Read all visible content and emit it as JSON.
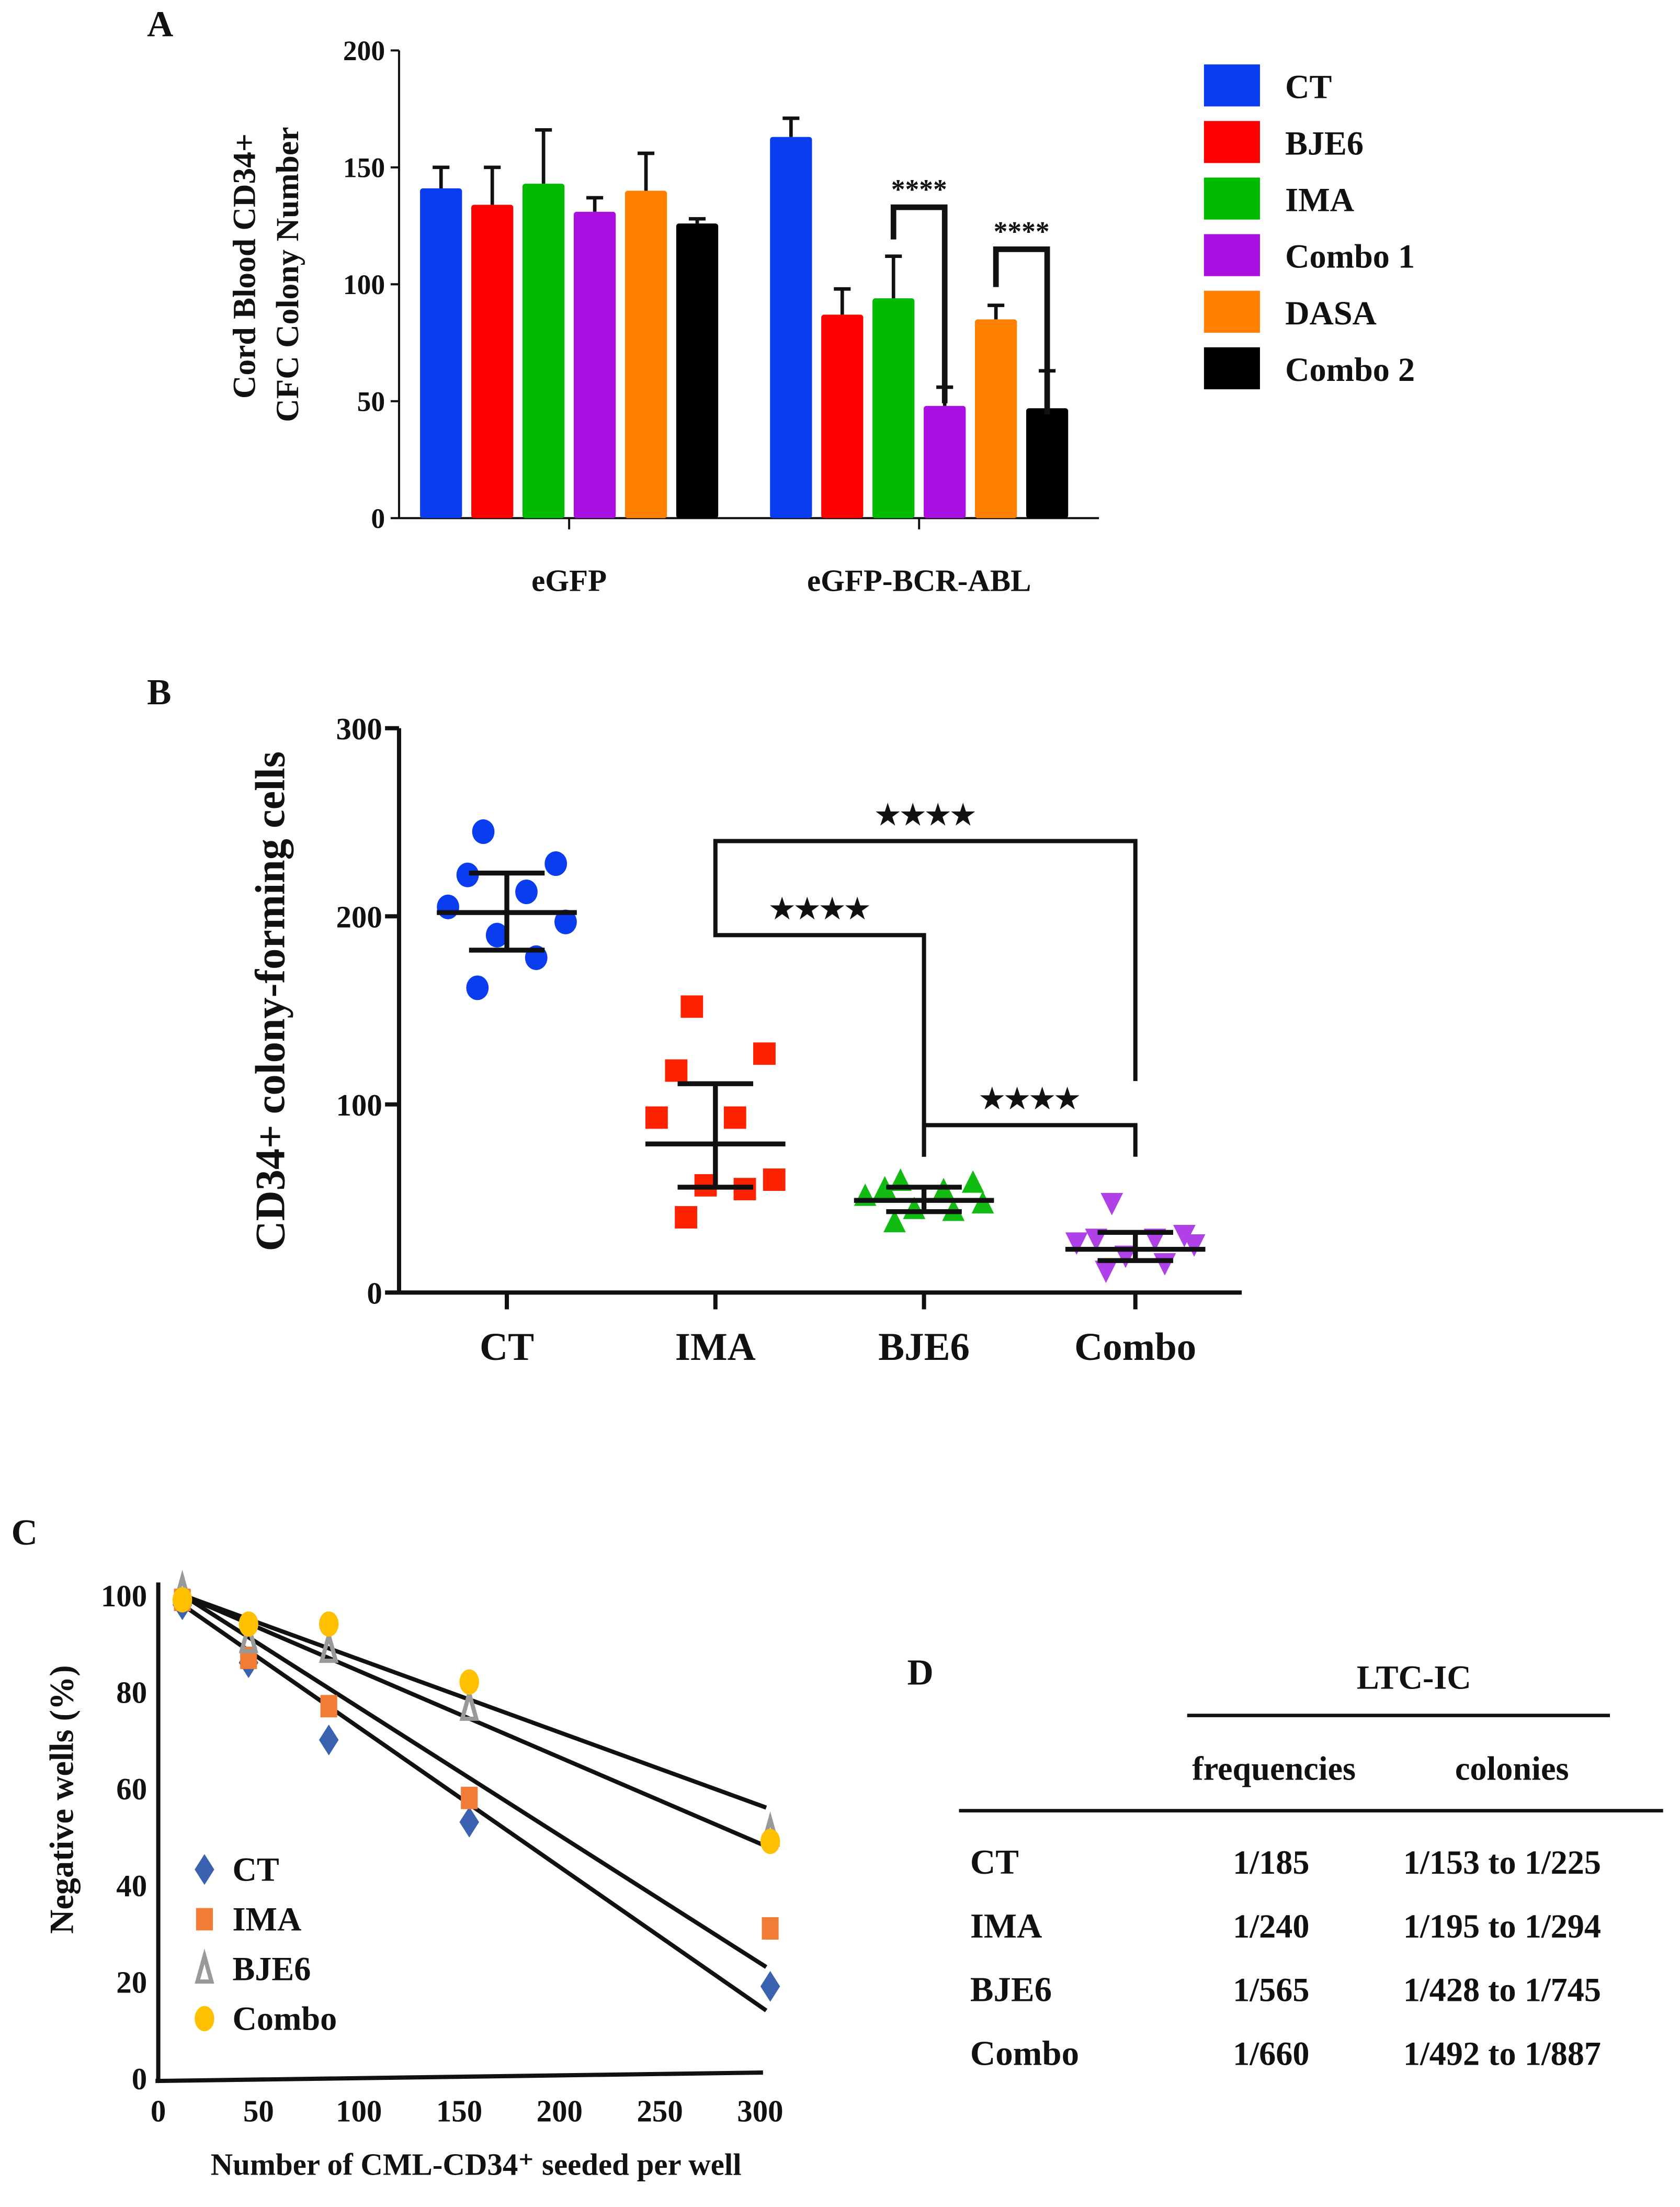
{
  "chart_data": [
    {
      "panel": "A",
      "type": "bar",
      "ylabel": [
        "Cord Blood CD34+",
        "CFC Colony Number"
      ],
      "ylim": [
        0,
        200
      ],
      "yticks": [
        0,
        50,
        100,
        150,
        200
      ],
      "categories": [
        "eGFP",
        "eGFP-BCR-ABL"
      ],
      "series": [
        {
          "name": "CT",
          "color": "#0a3cf0",
          "values": [
            141,
            163
          ],
          "errors": [
            9,
            8
          ]
        },
        {
          "name": "BJE6",
          "color": "#ff0000",
          "values": [
            134,
            87
          ],
          "errors": [
            16,
            11
          ]
        },
        {
          "name": "IMA",
          "color": "#00bb00",
          "values": [
            143,
            94
          ],
          "errors": [
            23,
            18
          ]
        },
        {
          "name": "Combo 1",
          "color": "#a80fe0",
          "values": [
            131,
            48
          ],
          "errors": [
            6,
            8
          ]
        },
        {
          "name": "DASA",
          "color": "#ff8000",
          "values": [
            140,
            85
          ],
          "errors": [
            16,
            6
          ]
        },
        {
          "name": "Combo 2",
          "color": "#000000",
          "values": [
            126,
            47
          ],
          "errors": [
            2,
            16
          ]
        }
      ],
      "significance": [
        {
          "category": "eGFP-BCR-ABL",
          "from": "IMA",
          "to": "Combo 1",
          "label": "****"
        },
        {
          "category": "eGFP-BCR-ABL",
          "from": "DASA",
          "to": "Combo 2",
          "label": "****"
        }
      ],
      "legend": "right"
    },
    {
      "panel": "B",
      "type": "scatter",
      "ylabel": "CD34+ colony-forming cells",
      "ylim": [
        0,
        300
      ],
      "yticks": [
        0,
        100,
        200,
        300
      ],
      "categories": [
        "CT",
        "IMA",
        "BJE6",
        "Combo"
      ],
      "groups": [
        {
          "name": "CT",
          "color": "#0a3cf0",
          "marker": "circle",
          "values": [
            245,
            228,
            222,
            213,
            205,
            197,
            190,
            178,
            162
          ],
          "mean": 202,
          "sd": [
            182,
            223
          ]
        },
        {
          "name": "IMA",
          "color": "#ff2200",
          "marker": "square",
          "values": [
            152,
            127,
            118,
            93,
            93,
            60,
            57,
            55,
            40
          ],
          "mean": 79,
          "sd": [
            56,
            111
          ]
        },
        {
          "name": "BJE6",
          "color": "#11bb11",
          "marker": "triangle-up",
          "values": [
            60,
            59,
            56,
            55,
            52,
            48,
            45,
            44,
            38
          ],
          "mean": 49,
          "sd": [
            43,
            56
          ]
        },
        {
          "name": "Combo",
          "color": "#b040e8",
          "marker": "triangle-down",
          "values": [
            47,
            30,
            28,
            28,
            26,
            25,
            19,
            15,
            11
          ],
          "mean": 23,
          "sd": [
            17,
            32
          ]
        }
      ],
      "significance": [
        {
          "from": "IMA",
          "to": "Combo",
          "level": 240,
          "label": "★★★★"
        },
        {
          "from": "IMA",
          "to": "BJE6",
          "level": 190,
          "label": "★★★★"
        },
        {
          "from": "BJE6",
          "to": "Combo",
          "level": 89,
          "label": "★★★★"
        }
      ]
    },
    {
      "panel": "C",
      "type": "scatter",
      "xlabel": "Number of CML-CD34⁺ seeded per well",
      "ylabel": "Negative wells (%)",
      "xlim": [
        0,
        300
      ],
      "ylim": [
        0,
        100
      ],
      "xticks": [
        0,
        50,
        100,
        150,
        200,
        250,
        300
      ],
      "yticks": [
        0,
        20,
        40,
        60,
        80,
        100
      ],
      "series": [
        {
          "name": "CT",
          "color": "#3a62b0",
          "marker": "diamond",
          "x": [
            12,
            45,
            85,
            155,
            305
          ],
          "y": [
            98,
            86,
            70,
            53,
            19
          ],
          "fit": [
            [
              12,
              98
            ],
            [
              303,
              14
            ]
          ]
        },
        {
          "name": "IMA",
          "color": "#f07c35",
          "marker": "square",
          "x": [
            12,
            45,
            85,
            155,
            305
          ],
          "y": [
            99,
            87,
            77,
            58,
            31
          ],
          "fit": [
            [
              12,
              100
            ],
            [
              303,
              23
            ]
          ]
        },
        {
          "name": "BJE6",
          "color": "#999999",
          "marker": "triangle",
          "x": [
            12,
            45,
            85,
            155,
            305
          ],
          "y": [
            101,
            91,
            89,
            77,
            51
          ],
          "fit": [
            [
              12,
              100
            ],
            [
              303,
              48
            ]
          ]
        },
        {
          "name": "Combo",
          "color": "#ffc000",
          "marker": "circle",
          "x": [
            12,
            45,
            85,
            155,
            305
          ],
          "y": [
            99,
            94,
            94,
            82,
            49
          ],
          "fit": [
            [
              12,
              100
            ],
            [
              303,
              56
            ]
          ]
        }
      ],
      "legend": "bottom-left"
    },
    {
      "panel": "D",
      "type": "table",
      "group_header": "LTC-IC",
      "columns": [
        "",
        "frequencies",
        "colonies"
      ],
      "rows": [
        [
          "CT",
          "1/185",
          "1/153 to 1/225"
        ],
        [
          "IMA",
          "1/240",
          "1/195 to 1/294"
        ],
        [
          "BJE6",
          "1/565",
          "1/428 to 1/745"
        ],
        [
          "Combo",
          "1/660",
          "1/492 to 1/887"
        ]
      ]
    }
  ]
}
